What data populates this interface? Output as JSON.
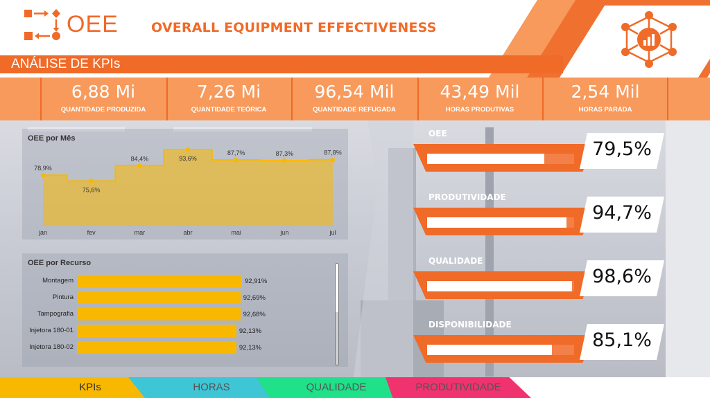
{
  "header": {
    "logo_text": "OEE",
    "title": "OVERALL EQUIPMENT EFFECTIVENESS",
    "section_title": "ANÁLISE DE KPIs",
    "icon": "network-chart-icon"
  },
  "kpis": [
    {
      "value": "6,88 Mi",
      "label": "QUANTIDADE PRODUZIDA"
    },
    {
      "value": "7,26 Mi",
      "label": "QUANTIDADE TEÓRICA"
    },
    {
      "value": "96,54 Mil",
      "label": "QUANTIDADE REFUGADA"
    },
    {
      "value": "43,49 Mil",
      "label": "HORAS PRODUTIVAS"
    },
    {
      "value": "2,54 Mil",
      "label": "HORAS PARADA"
    }
  ],
  "oee_por_mes": {
    "title": "OEE por Mês"
  },
  "oee_por_recurso": {
    "title": "OEE por Recurso"
  },
  "metrics": [
    {
      "label": "OEE",
      "value": "79,5%",
      "fill": 0.795
    },
    {
      "label": "PRODUTIVIDADE",
      "value": "94,7%",
      "fill": 0.947
    },
    {
      "label": "QUALIDADE",
      "value": "98,6%",
      "fill": 0.986
    },
    {
      "label": "DISPONIBILIDADE",
      "value": "85,1%",
      "fill": 0.851
    }
  ],
  "nav": [
    {
      "label": "KPIs",
      "color": "#f9b800",
      "text_color": "#333333"
    },
    {
      "label": "HORAS",
      "color": "#3fc6d6",
      "text_color": "#555555"
    },
    {
      "label": "QUALIDADE",
      "color": "#20e08a",
      "text_color": "#555555"
    },
    {
      "label": "PRODUTIVIDADE",
      "color": "#f0326e",
      "text_color": "#555555"
    }
  ],
  "colors": {
    "accent": "#f06a28",
    "accent_light": "#f79a5c",
    "bar": "#f9b800"
  },
  "chart_data": [
    {
      "type": "area",
      "title": "OEE por Mês",
      "categories": [
        "jan",
        "fev",
        "mar",
        "abr",
        "mai",
        "jun",
        "jul"
      ],
      "values": [
        78.9,
        75.6,
        84.4,
        93.6,
        87.7,
        87.3,
        87.8
      ],
      "data_labels": [
        "78,9%",
        "75,6%",
        "84,4%",
        "93,6%",
        "87,7%",
        "87,3%",
        "87,8%"
      ],
      "step": true,
      "ylim": [
        0,
        100
      ],
      "grid": false
    },
    {
      "type": "bar",
      "orientation": "horizontal",
      "title": "OEE por Recurso",
      "categories": [
        "Montagem",
        "Pintura",
        "Tampografia",
        "Injetora 180-01",
        "Injetora 180-02"
      ],
      "values": [
        92.91,
        92.69,
        92.68,
        92.13,
        92.13
      ],
      "data_labels": [
        "92,91%",
        "92,69%",
        "92,68%",
        "92,13%",
        "92,13%"
      ]
    }
  ]
}
